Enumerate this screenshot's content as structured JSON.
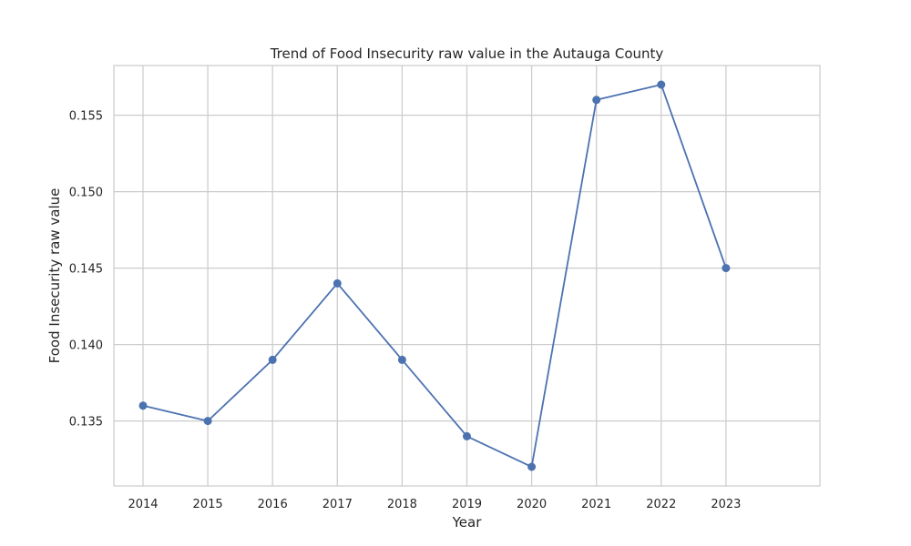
{
  "chart_data": {
    "type": "line",
    "title": "Trend of Food Insecurity raw value in the Autauga County",
    "xlabel": "Year",
    "ylabel": "Food Insecurity raw value",
    "x": [
      2014,
      2015,
      2016,
      2017,
      2018,
      2019,
      2020,
      2021,
      2022,
      2023
    ],
    "series": [
      {
        "values": [
          0.136,
          0.135,
          0.139,
          0.144,
          0.139,
          0.134,
          0.132,
          0.156,
          0.157,
          0.145
        ]
      }
    ],
    "xlim": [
      2013.55,
      2024.45
    ],
    "ylim": [
      0.13075,
      0.15825
    ],
    "x_ticks": [
      "2014",
      "2015",
      "2016",
      "2017",
      "2018",
      "2019",
      "2020",
      "2021",
      "2022",
      "2023"
    ],
    "y_ticks": [
      "0.135",
      "0.140",
      "0.145",
      "0.150",
      "0.155"
    ],
    "grid": true,
    "markers": true,
    "colors": {
      "line": "#4c72b0",
      "grid": "#cccccc",
      "spine": "#cccccc",
      "text": "#262626",
      "background": "#ffffff"
    }
  }
}
